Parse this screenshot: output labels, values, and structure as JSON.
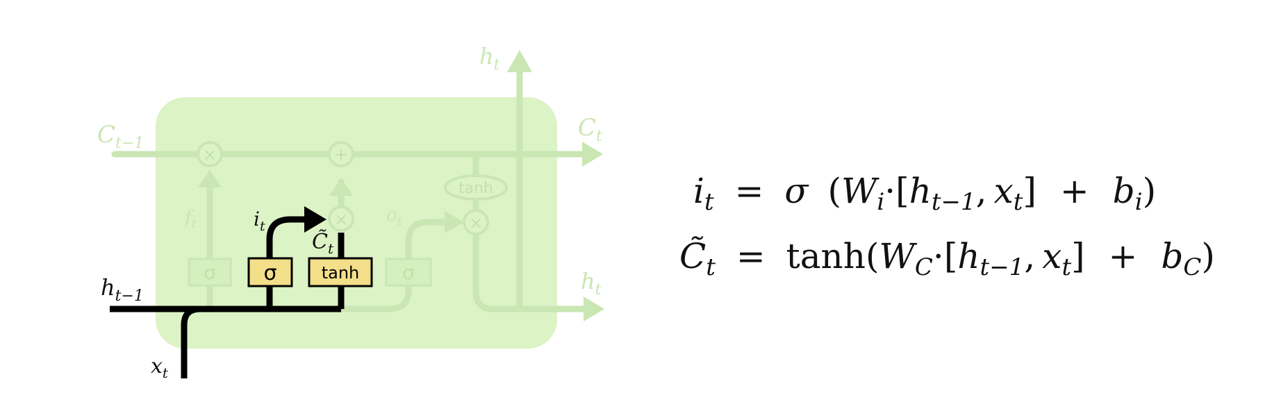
{
  "diagram": {
    "colors": {
      "cell_fill": "#dcf3c6",
      "faded": "#c9e6b3",
      "faded_stroke": "#bfe0a6",
      "active_box": "#f3de8a",
      "active_line": "#000000"
    },
    "labels": {
      "c_prev": {
        "main": "C",
        "sub": "t−1"
      },
      "c_next": {
        "main": "C",
        "sub": "t"
      },
      "h_top": {
        "main": "h",
        "sub": "t"
      },
      "h_right": {
        "main": "h",
        "sub": "t"
      },
      "h_prev": {
        "main": "h",
        "sub": "t−1"
      },
      "x_in": {
        "main": "x",
        "sub": "t"
      },
      "f_gate": {
        "main": "f",
        "sub": "t"
      },
      "o_gate": {
        "main": "o",
        "sub": "t"
      },
      "i_gate": {
        "main": "i",
        "sub": "t"
      },
      "c_tilde": {
        "main": "C̃",
        "sub": "t"
      }
    },
    "ops": {
      "multiply": "×",
      "add": "+",
      "tanh_oval": "tanh"
    },
    "boxes": {
      "sigma_forget": "σ",
      "sigma_input": "σ",
      "tanh_candidate": "tanh",
      "sigma_output": "σ"
    }
  },
  "equations": [
    {
      "lhs_main": "i",
      "lhs_sub": "t",
      "eq": "=",
      "func": "σ",
      "open": "(",
      "w_main": "W",
      "w_sub": "i",
      "dot": "·",
      "bracket_open": "[",
      "h_main": "h",
      "h_sub": "t−1",
      "comma": ",",
      "x_main": "x",
      "x_sub": "t",
      "bracket_close": "]",
      "plus": "+",
      "b_main": "b",
      "b_sub": "i",
      "close": ")"
    },
    {
      "lhs_main": "C̃",
      "lhs_sub": "t",
      "eq": "=",
      "func": "tanh",
      "open": "(",
      "w_main": "W",
      "w_sub": "C",
      "dot": "·",
      "bracket_open": "[",
      "h_main": "h",
      "h_sub": "t−1",
      "comma": ",",
      "x_main": "x",
      "x_sub": "t",
      "bracket_close": "]",
      "plus": "+",
      "b_main": "b",
      "b_sub": "C",
      "close": ")"
    }
  ]
}
